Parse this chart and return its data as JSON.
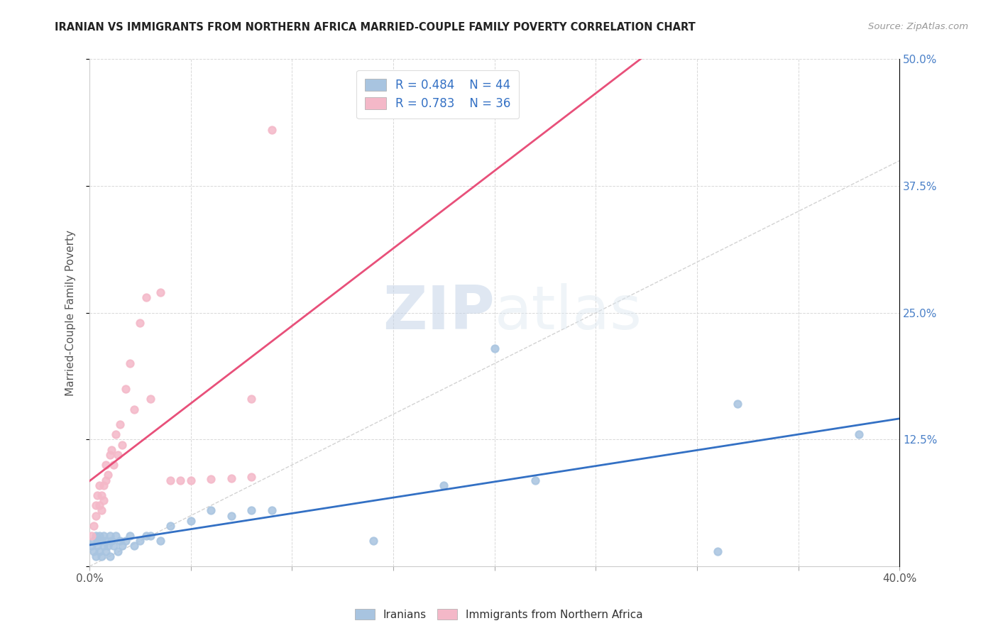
{
  "title": "IRANIAN VS IMMIGRANTS FROM NORTHERN AFRICA MARRIED-COUPLE FAMILY POVERTY CORRELATION CHART",
  "source": "Source: ZipAtlas.com",
  "ylabel_label": "Married-Couple Family Poverty",
  "legend_label1": "Iranians",
  "legend_label2": "Immigrants from Northern Africa",
  "R1": 0.484,
  "N1": 44,
  "R2": 0.783,
  "N2": 36,
  "color1": "#a8c4e0",
  "color2": "#f4b8c8",
  "line1_color": "#3370c4",
  "line2_color": "#e8507a",
  "diag_color": "#c8c8c8",
  "watermark_zip": "ZIP",
  "watermark_atlas": "atlas",
  "background_color": "#ffffff",
  "iranians_x": [
    0.001,
    0.002,
    0.002,
    0.003,
    0.003,
    0.004,
    0.004,
    0.005,
    0.005,
    0.006,
    0.006,
    0.007,
    0.007,
    0.008,
    0.008,
    0.009,
    0.01,
    0.01,
    0.011,
    0.012,
    0.013,
    0.014,
    0.015,
    0.016,
    0.018,
    0.02,
    0.022,
    0.025,
    0.028,
    0.03,
    0.035,
    0.04,
    0.05,
    0.06,
    0.07,
    0.08,
    0.09,
    0.2,
    0.22,
    0.32,
    0.31,
    0.38,
    0.175,
    0.14
  ],
  "iranians_y": [
    0.02,
    0.015,
    0.025,
    0.01,
    0.03,
    0.02,
    0.025,
    0.015,
    0.03,
    0.01,
    0.025,
    0.02,
    0.03,
    0.015,
    0.025,
    0.02,
    0.03,
    0.01,
    0.025,
    0.02,
    0.03,
    0.015,
    0.025,
    0.02,
    0.025,
    0.03,
    0.02,
    0.025,
    0.03,
    0.03,
    0.025,
    0.04,
    0.045,
    0.055,
    0.05,
    0.055,
    0.055,
    0.215,
    0.085,
    0.16,
    0.015,
    0.13,
    0.08,
    0.025
  ],
  "northern_africa_x": [
    0.001,
    0.002,
    0.003,
    0.003,
    0.004,
    0.005,
    0.005,
    0.006,
    0.006,
    0.007,
    0.007,
    0.008,
    0.008,
    0.009,
    0.01,
    0.011,
    0.012,
    0.013,
    0.014,
    0.015,
    0.016,
    0.018,
    0.02,
    0.022,
    0.025,
    0.028,
    0.03,
    0.035,
    0.04,
    0.045,
    0.05,
    0.06,
    0.07,
    0.08,
    0.09,
    0.08
  ],
  "northern_africa_y": [
    0.03,
    0.04,
    0.05,
    0.06,
    0.07,
    0.06,
    0.08,
    0.055,
    0.07,
    0.065,
    0.08,
    0.085,
    0.1,
    0.09,
    0.11,
    0.115,
    0.1,
    0.13,
    0.11,
    0.14,
    0.12,
    0.175,
    0.2,
    0.155,
    0.24,
    0.265,
    0.165,
    0.27,
    0.085,
    0.085,
    0.085,
    0.086,
    0.087,
    0.088,
    0.43,
    0.165
  ],
  "xlim": [
    0.0,
    0.4
  ],
  "ylim": [
    0.0,
    0.5
  ],
  "xticks": [
    0.0,
    0.05,
    0.1,
    0.15,
    0.2,
    0.25,
    0.3,
    0.35,
    0.4
  ],
  "yticks": [
    0.0,
    0.125,
    0.25,
    0.375,
    0.5
  ]
}
